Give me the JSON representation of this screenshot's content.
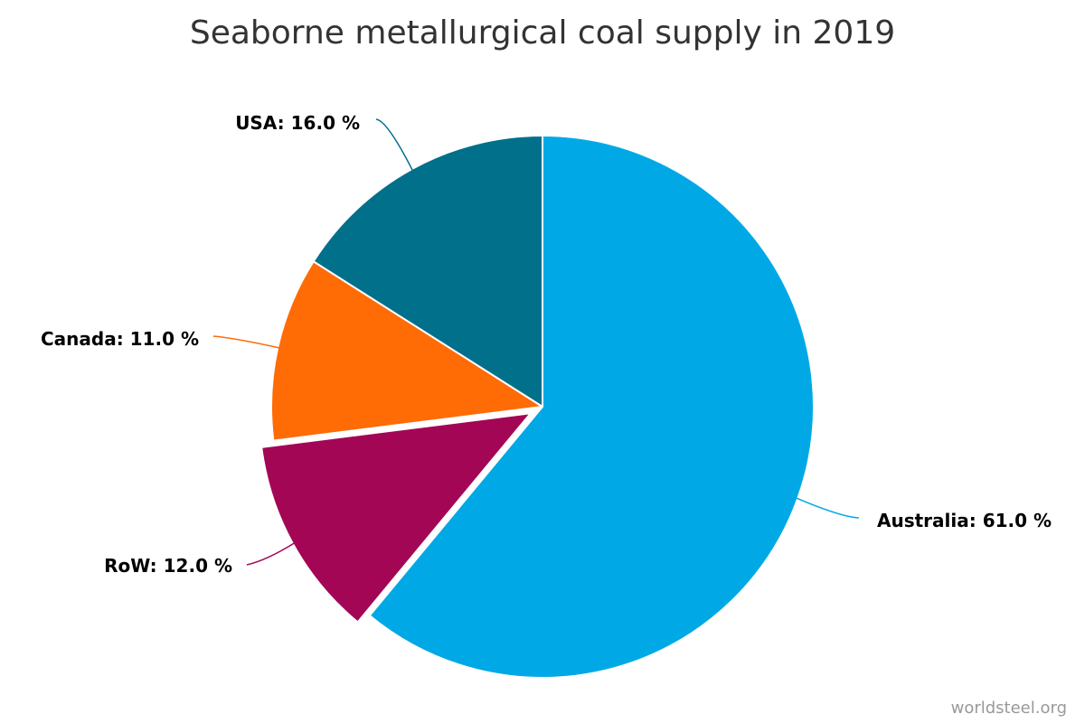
{
  "chart_data": {
    "type": "pie",
    "title": "Seaborne metallurgical coal supply in 2019",
    "slices": [
      {
        "name": "Australia",
        "value": 61.0,
        "label": "Australia: 61.0 %",
        "color": "#00a9e6"
      },
      {
        "name": "RoW",
        "value": 12.0,
        "label": "RoW: 12.0 %",
        "color": "#a30654",
        "exploded": true
      },
      {
        "name": "Canada",
        "value": 11.0,
        "label": "Canada: 11.0 %",
        "color": "#ff6b05"
      },
      {
        "name": "USA",
        "value": 16.0,
        "label": "USA: 16.0 %",
        "color": "#00708b"
      }
    ]
  },
  "credit": "worldsteel.org"
}
